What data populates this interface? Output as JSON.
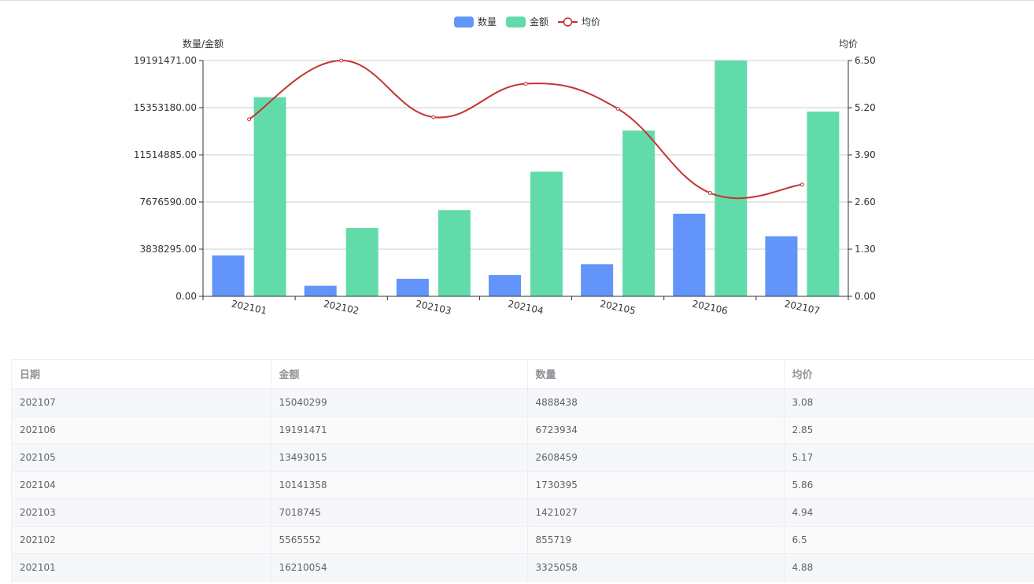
{
  "chart_data": {
    "type": "bar",
    "categories": [
      "202101",
      "202102",
      "202103",
      "202104",
      "202105",
      "202106",
      "202107"
    ],
    "series": [
      {
        "name": "数量",
        "kind": "bar",
        "axis": "left",
        "color": "#6394f9",
        "values": [
          3325058,
          855719,
          1421027,
          1730395,
          2608459,
          6723934,
          4888438
        ]
      },
      {
        "name": "金额",
        "kind": "bar",
        "axis": "left",
        "color": "#62dbab",
        "values": [
          16210054,
          5565552,
          7018745,
          10141358,
          13493015,
          19191471,
          15040299
        ]
      },
      {
        "name": "均价",
        "kind": "line",
        "axis": "right",
        "color": "#c23531",
        "values": [
          4.88,
          6.5,
          4.94,
          5.86,
          5.17,
          2.85,
          3.08
        ]
      }
    ],
    "ylabel": "数量/金额",
    "ylabel_right": "均价",
    "ylim": [
      0,
      19191471
    ],
    "ylim_right": [
      0,
      6.5
    ],
    "yticks": [
      "0.00",
      "3838295.00",
      "7676590.00",
      "11514885.00",
      "15353180.00",
      "19191471.00"
    ],
    "yticks_right": [
      "0.00",
      "1.30",
      "2.60",
      "3.90",
      "5.20",
      "6.50"
    ],
    "grid": true,
    "legend_position": "top-center"
  },
  "table": {
    "headers": [
      "日期",
      "金额",
      "数量",
      "均价"
    ],
    "rows": [
      [
        "202107",
        "15040299",
        "4888438",
        "3.08"
      ],
      [
        "202106",
        "19191471",
        "6723934",
        "2.85"
      ],
      [
        "202105",
        "13493015",
        "2608459",
        "5.17"
      ],
      [
        "202104",
        "10141358",
        "1730395",
        "5.86"
      ],
      [
        "202103",
        "7018745",
        "1421027",
        "4.94"
      ],
      [
        "202102",
        "5565552",
        "855719",
        "6.5"
      ],
      [
        "202101",
        "16210054",
        "3325058",
        "4.88"
      ]
    ]
  }
}
